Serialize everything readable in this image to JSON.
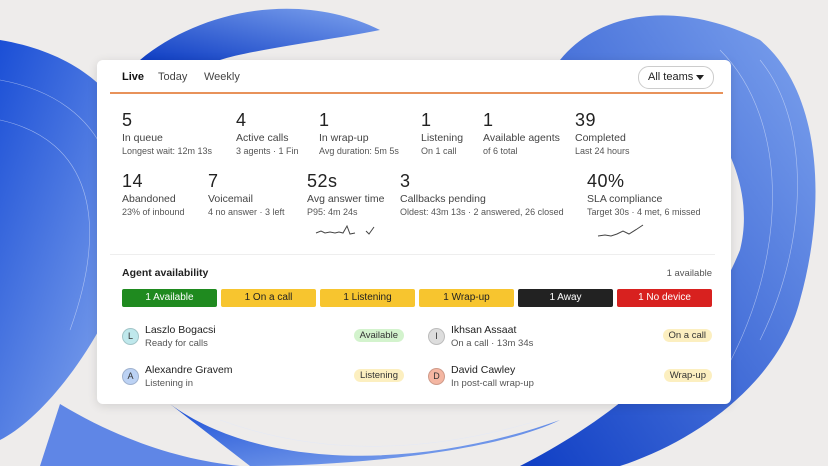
{
  "tabs": [
    "Live",
    "Today",
    "Weekly"
  ],
  "team_filter": "All teams",
  "stats": [
    {
      "value": "5",
      "label": "In queue",
      "detail": "Longest wait: 12m 13s"
    },
    {
      "value": "4",
      "label": "Active calls",
      "detail": "3 agents · 1 Fin"
    },
    {
      "value": "1",
      "label": "In wrap-up",
      "detail": "Avg duration: 5m 5s"
    },
    {
      "value": "1",
      "label": "Listening",
      "detail": "On 1 call"
    },
    {
      "value": "1",
      "label": "Available agents",
      "detail": "of 6 total"
    },
    {
      "value": "39",
      "label": "Completed",
      "detail": "Last 24 hours"
    },
    {
      "value": "14",
      "label": "Abandoned",
      "detail": "23% of inbound"
    },
    {
      "value": "7",
      "label": "Voicemail",
      "detail": "4 no answer · 3 left"
    },
    {
      "value": "52s",
      "label": "Avg answer time",
      "detail": "P95: 4m 24s"
    },
    {
      "value": "3",
      "label": "Callbacks pending",
      "detail": "Oldest: 43m 13s · 2 answered, 26 closed"
    },
    {
      "value": "40%",
      "label": "SLA compliance",
      "detail": "Target 30s · 4 met, 6 missed"
    }
  ],
  "availability": {
    "title": "Agent availability",
    "summary": "1 available",
    "segments": [
      {
        "label": "1 Available",
        "color": "#1f8a1f"
      },
      {
        "label": "1 On a call",
        "color": "#f7c52f"
      },
      {
        "label": "1 Listening",
        "color": "#f7c52f"
      },
      {
        "label": "1 Wrap-up",
        "color": "#f7c52f"
      },
      {
        "label": "1 Away",
        "color": "#222222"
      },
      {
        "label": "1 No device",
        "color": "#d8211f"
      }
    ]
  },
  "agents": [
    {
      "initial": "L",
      "name": "Laszlo Bogacsi",
      "detail": "Ready for calls",
      "status": "Available",
      "avatar_color": "#bfe8ec",
      "badge_color": "#d3f3cd"
    },
    {
      "initial": "A",
      "name": "Alexandre Gravem",
      "detail": "Listening in",
      "status": "Listening",
      "avatar_color": "#bcd2f4",
      "badge_color": "#fcefc0"
    },
    {
      "initial": "I",
      "name": "Ikhsan Assaat",
      "detail": "On a call · 13m 34s",
      "status": "On a call",
      "avatar_color": "#dddddd",
      "badge_color": "#fcefc0"
    },
    {
      "initial": "D",
      "name": "David Cawley",
      "detail": "In post-call wrap-up",
      "status": "Wrap-up",
      "avatar_color": "#f4b6a2",
      "badge_color": "#fcefc0"
    }
  ]
}
